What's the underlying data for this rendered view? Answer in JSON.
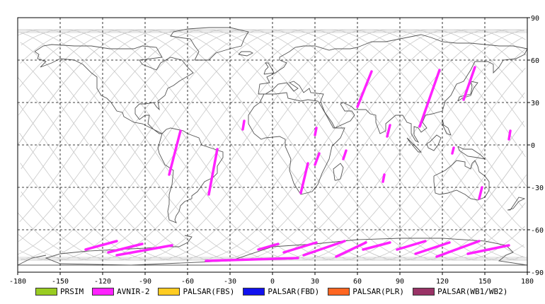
{
  "map": {
    "x_ticks": [
      "-180",
      "-150",
      "-120",
      "-90",
      "-60",
      "-30",
      "0",
      "30",
      "60",
      "90",
      "120",
      "150",
      "180"
    ],
    "y_ticks": [
      "90",
      "60",
      "30",
      "0",
      "-30",
      "-60",
      "-90"
    ],
    "extent": {
      "lon": [
        -180,
        180
      ],
      "lat": [
        -90,
        90
      ]
    },
    "grid": "dashed",
    "colors": {
      "coastline": "#555555",
      "orbit": "#c8c8c8",
      "grid": "#000000",
      "frame": "#000000"
    }
  },
  "legend": [
    {
      "label": "PRSIM",
      "color": "#99cc22"
    },
    {
      "label": "AVNIR-2",
      "color": "#ff22ff"
    },
    {
      "label": "PALSAR(FBS)",
      "color": "#ffcc22"
    },
    {
      "label": "PALSAR(FBD)",
      "color": "#1111ee"
    },
    {
      "label": "PALSAR(PLR)",
      "color": "#ff6622"
    },
    {
      "label": "PALSAR(WB1/WB2)",
      "color": "#993366"
    }
  ],
  "chart_data": {
    "type": "map",
    "series": [
      {
        "name": "AVNIR-2",
        "color": "#ff22ff",
        "segments": [
          {
            "lon": [
              -73,
              -65
            ],
            "lat": [
              -21,
              10
            ]
          },
          {
            "lon": [
              -45,
              -39
            ],
            "lat": [
              -35,
              -3
            ]
          },
          {
            "lon": [
              -21,
              -20
            ],
            "lat": [
              11,
              17
            ]
          },
          {
            "lon": [
              20,
              25
            ],
            "lat": [
              -34,
              -13
            ]
          },
          {
            "lon": [
              30,
              31
            ],
            "lat": [
              7,
              12
            ]
          },
          {
            "lon": [
              30,
              33
            ],
            "lat": [
              -14,
              -6
            ]
          },
          {
            "lon": [
              50,
              52
            ],
            "lat": [
              -10,
              -4
            ]
          },
          {
            "lon": [
              60,
              70
            ],
            "lat": [
              27,
              52
            ]
          },
          {
            "lon": [
              78,
              79
            ],
            "lat": [
              -26,
              -21
            ]
          },
          {
            "lon": [
              81,
              83
            ],
            "lat": [
              6,
              14
            ]
          },
          {
            "lon": [
              104,
              118
            ],
            "lat": [
              13,
              53
            ]
          },
          {
            "lon": [
              127,
              128
            ],
            "lat": [
              -6,
              -2
            ]
          },
          {
            "lon": [
              135,
              143
            ],
            "lat": [
              32,
              55
            ]
          },
          {
            "lon": [
              146,
              148
            ],
            "lat": [
              -38,
              -30
            ]
          },
          {
            "lon": [
              167,
              168
            ],
            "lat": [
              4,
              10
            ]
          },
          {
            "lon": [
              -132,
              -110
            ],
            "lat": [
              -74,
              -68
            ]
          },
          {
            "lon": [
              -116,
              -92
            ],
            "lat": [
              -76,
              -70
            ]
          },
          {
            "lon": [
              -110,
              -71
            ],
            "lat": [
              -78,
              -71
            ]
          },
          {
            "lon": [
              -47,
              18
            ],
            "lat": [
              -82,
              -80
            ]
          },
          {
            "lon": [
              -10,
              4
            ],
            "lat": [
              -74,
              -70
            ]
          },
          {
            "lon": [
              8,
              31
            ],
            "lat": [
              -76,
              -69
            ]
          },
          {
            "lon": [
              22,
              51
            ],
            "lat": [
              -78,
              -68
            ]
          },
          {
            "lon": [
              45,
              66
            ],
            "lat": [
              -79,
              -69
            ]
          },
          {
            "lon": [
              64,
              83
            ],
            "lat": [
              -74,
              -69
            ]
          },
          {
            "lon": [
              88,
              108
            ],
            "lat": [
              -74,
              -68
            ]
          },
          {
            "lon": [
              101,
              125
            ],
            "lat": [
              -77,
              -69
            ]
          },
          {
            "lon": [
              116,
              146
            ],
            "lat": [
              -79,
              -68
            ]
          },
          {
            "lon": [
              138,
              167
            ],
            "lat": [
              -77,
              -71
            ]
          }
        ]
      }
    ]
  }
}
